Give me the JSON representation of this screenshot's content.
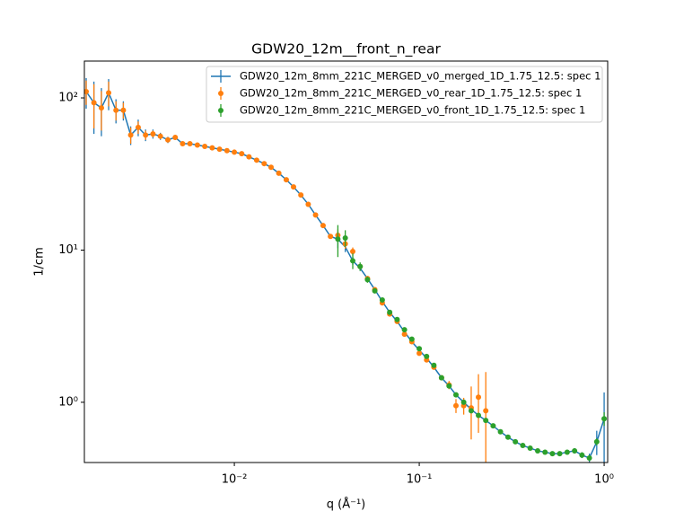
{
  "chart_data": {
    "type": "errorbar",
    "title": "GDW20_12m__front_n_rear",
    "x_label": "q (Å⁻¹)",
    "y_label": "1/cm",
    "xscale": "log",
    "yscale": "log",
    "legend": "upper right",
    "xlim": [
      0.001545,
      1.045
    ],
    "ylim": [
      0.402,
      174.6
    ],
    "xticks": [
      {
        "value": 0.01,
        "label": "10⁻²"
      },
      {
        "value": 0.1,
        "label": "10⁻¹"
      },
      {
        "value": 1,
        "label": "10⁰"
      }
    ],
    "yticks": [
      {
        "value": 1,
        "label": "10⁰"
      },
      {
        "value": 10,
        "label": "10¹"
      },
      {
        "value": 100,
        "label": "10²"
      }
    ],
    "series": [
      {
        "name": "GDW20_12m_8mm_221C_MERGED_v0_merged_1D_1.75_12.5: spec 1",
        "color": "#1f77b4",
        "style": "line",
        "x": [
          0.00158,
          0.00174,
          0.00191,
          0.00209,
          0.00229,
          0.00251,
          0.00275,
          0.00302,
          0.00331,
          0.00363,
          0.00398,
          0.00437,
          0.00479,
          0.00525,
          0.00575,
          0.00631,
          0.00692,
          0.00759,
          0.00832,
          0.00912,
          0.01,
          0.01096,
          0.012,
          0.0132,
          0.0145,
          0.0158,
          0.0174,
          0.0191,
          0.0209,
          0.0229,
          0.0251,
          0.0275,
          0.0302,
          0.0331,
          0.0363,
          0.0398,
          0.0437,
          0.0479,
          0.0525,
          0.0575,
          0.0631,
          0.0692,
          0.0759,
          0.0832,
          0.0912,
          0.1,
          0.1096,
          0.12,
          0.132,
          0.145,
          0.158,
          0.174,
          0.191,
          0.209,
          0.229,
          0.251,
          0.275,
          0.302,
          0.331,
          0.363,
          0.398,
          0.437,
          0.479,
          0.525,
          0.575,
          0.631,
          0.692,
          0.759,
          0.832,
          0.912,
          1.0
        ],
        "values": [
          110,
          93,
          86,
          108,
          83,
          83,
          57,
          64,
          57,
          58,
          56,
          53,
          55,
          50,
          50,
          49,
          48,
          47,
          46,
          45,
          44,
          43,
          41,
          39,
          37,
          35,
          32,
          29,
          26,
          23,
          20,
          17,
          14.5,
          12.3,
          11.8,
          10.5,
          8.5,
          7.6,
          6.5,
          5.5,
          4.6,
          3.9,
          3.4,
          2.9,
          2.5,
          2.2,
          1.95,
          1.7,
          1.45,
          1.28,
          1.12,
          1.0,
          0.9,
          0.82,
          0.76,
          0.7,
          0.64,
          0.59,
          0.55,
          0.52,
          0.5,
          0.48,
          0.47,
          0.46,
          0.46,
          0.47,
          0.48,
          0.45,
          0.43,
          0.55,
          0.78
        ],
        "errors": [
          25,
          35,
          30,
          25,
          15,
          12,
          8,
          8,
          5,
          4,
          3,
          2.5,
          2,
          1.5,
          1.2,
          1,
          1,
          0.8,
          0.8,
          0.7,
          0.6,
          0.6,
          0.5,
          0.5,
          0.5,
          0.4,
          0.4,
          0.4,
          0.3,
          0.3,
          0.3,
          0.3,
          0.3,
          0.3,
          1.5,
          0.8,
          0.5,
          0.3,
          0.2,
          0.15,
          0.1,
          0.08,
          0.07,
          0.06,
          0.05,
          0.04,
          0.03,
          0.03,
          0.03,
          0.03,
          0.03,
          0.03,
          0.03,
          0.02,
          0.02,
          0.02,
          0.02,
          0.02,
          0.01,
          0.01,
          0.01,
          0.01,
          0.01,
          0.01,
          0.01,
          0.01,
          0.02,
          0.02,
          0.03,
          0.1,
          0.38
        ]
      },
      {
        "name": "GDW20_12m_8mm_221C_MERGED_v0_rear_1D_1.75_12.5: spec 1",
        "color": "#ff7f0e",
        "style": "marker",
        "x": [
          0.00158,
          0.00174,
          0.00191,
          0.00209,
          0.00229,
          0.00251,
          0.00275,
          0.00302,
          0.00331,
          0.00363,
          0.00398,
          0.00437,
          0.00479,
          0.00525,
          0.00575,
          0.00631,
          0.00692,
          0.00759,
          0.00832,
          0.00912,
          0.01,
          0.01096,
          0.012,
          0.0132,
          0.0145,
          0.0158,
          0.0174,
          0.0191,
          0.0209,
          0.0229,
          0.0251,
          0.0275,
          0.0302,
          0.0331,
          0.0363,
          0.0398,
          0.0437,
          0.0479,
          0.0525,
          0.0575,
          0.0631,
          0.0692,
          0.0759,
          0.0832,
          0.0912,
          0.1,
          0.1096,
          0.12,
          0.132,
          0.145,
          0.158,
          0.174,
          0.191,
          0.209,
          0.229
        ],
        "values": [
          110,
          93,
          86,
          108,
          83,
          83,
          57,
          64,
          57,
          58,
          56,
          53,
          55,
          50,
          50,
          49,
          48,
          47,
          46,
          45,
          44,
          43,
          41,
          39,
          37,
          35,
          32,
          29,
          26,
          23,
          20,
          17,
          14.5,
          12.3,
          12.5,
          11,
          9.8,
          7.8,
          6.5,
          5.5,
          4.5,
          3.8,
          3.4,
          2.8,
          2.5,
          2.1,
          1.9,
          1.7,
          1.45,
          1.3,
          0.95,
          0.95,
          0.92,
          1.08,
          0.88
        ],
        "errors": [
          20,
          30,
          25,
          20,
          12,
          10,
          7,
          6,
          4,
          3,
          2.5,
          2,
          1.5,
          1.2,
          1,
          0.8,
          0.8,
          0.7,
          0.6,
          0.6,
          0.5,
          0.5,
          0.5,
          0.4,
          0.4,
          0.4,
          0.3,
          0.3,
          0.3,
          0.3,
          0.3,
          0.3,
          0.3,
          0.4,
          1.2,
          0.8,
          0.6,
          0.3,
          0.2,
          0.15,
          0.12,
          0.1,
          0.08,
          0.07,
          0.06,
          0.05,
          0.05,
          0.05,
          0.05,
          0.08,
          0.1,
          0.12,
          0.35,
          0.45,
          0.7
        ]
      },
      {
        "name": "GDW20_12m_8mm_221C_MERGED_v0_front_1D_1.75_12.5: spec 1",
        "color": "#2ca02c",
        "style": "marker",
        "x": [
          0.0363,
          0.0398,
          0.0437,
          0.0479,
          0.0525,
          0.0575,
          0.0631,
          0.0692,
          0.0759,
          0.0832,
          0.0912,
          0.1,
          0.1096,
          0.12,
          0.132,
          0.145,
          0.158,
          0.174,
          0.191,
          0.209,
          0.229,
          0.251,
          0.275,
          0.302,
          0.331,
          0.363,
          0.398,
          0.437,
          0.479,
          0.525,
          0.575,
          0.631,
          0.692,
          0.759,
          0.832,
          0.912,
          1.0
        ],
        "values": [
          11.8,
          12,
          8.5,
          7.8,
          6.4,
          5.4,
          4.7,
          3.9,
          3.5,
          3.0,
          2.6,
          2.25,
          2.0,
          1.75,
          1.45,
          1.28,
          1.12,
          1.0,
          0.88,
          0.82,
          0.76,
          0.7,
          0.64,
          0.59,
          0.55,
          0.52,
          0.5,
          0.48,
          0.47,
          0.46,
          0.46,
          0.47,
          0.48,
          0.45,
          0.43,
          0.55,
          0.78
        ],
        "errors": [
          2.8,
          1.5,
          1,
          0.5,
          0.3,
          0.2,
          0.15,
          0.1,
          0.08,
          0.07,
          0.06,
          0.05,
          0.04,
          0.03,
          0.03,
          0.03,
          0.03,
          0.03,
          0.02,
          0.02,
          0.02,
          0.02,
          0.02,
          0.01,
          0.01,
          0.01,
          0.01,
          0.01,
          0.01,
          0.01,
          0.01,
          0.01,
          0.01,
          0.02,
          0.02,
          0.03,
          0.08
        ]
      }
    ]
  }
}
